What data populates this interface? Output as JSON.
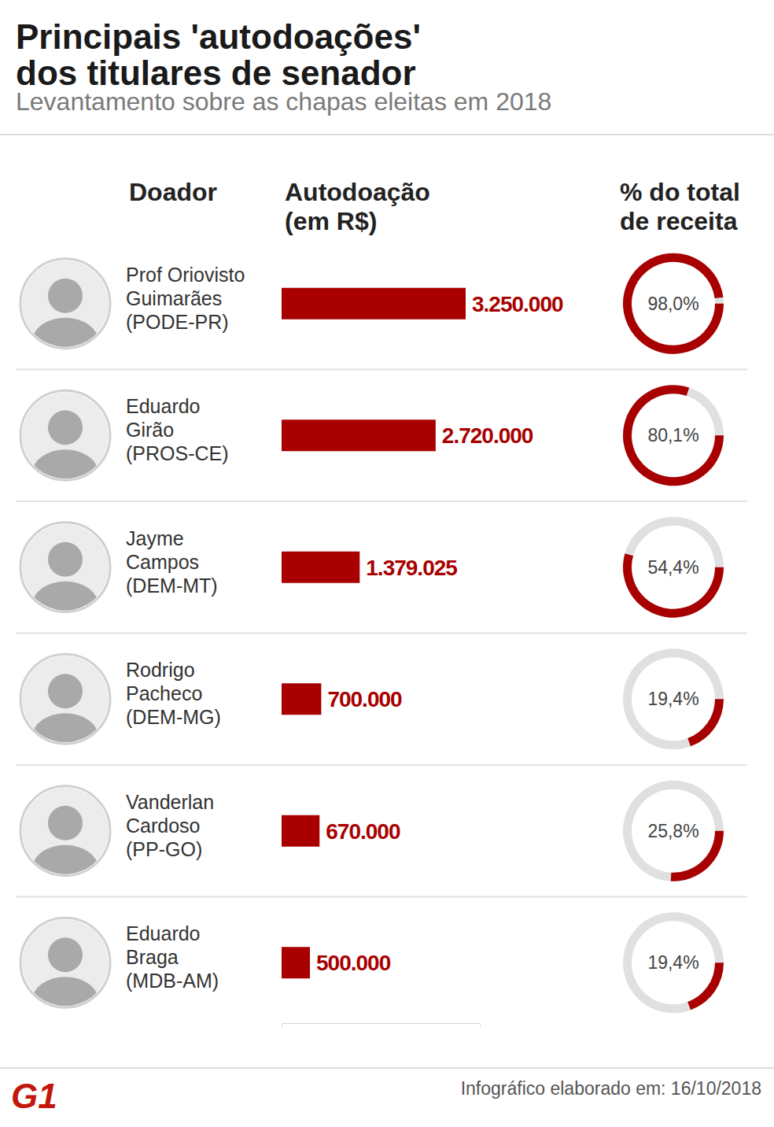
{
  "chart_data": {
    "type": "bar",
    "orientation": "horizontal",
    "title": "Principais 'autodoações'\ndos titulares de senador",
    "subtitle": "Levantamento sobre as chapas eleitas em 2018",
    "categories_title": "Doador",
    "categories": [
      "Prof Oriovisto\nGuimarães\n(PODE-PR)",
      "Eduardo\nGirão\n(PROS-CE)",
      "Jayme\nCampos\n(DEM-MT)",
      "Rodrigo\nPacheco\n(DEM-MG)",
      "Vanderlan\nCardoso\n(PP-GO)",
      "Eduardo\nBraga\n(MDB-AM)"
    ],
    "series": [
      {
        "name": "Autodoação\n(em R$)",
        "type": "bar",
        "color": "#a80000",
        "values": [
          3250000,
          2720000,
          1379025,
          700000,
          670000,
          500000
        ],
        "value_labels": [
          "3.250.000",
          "2.720.000",
          "1.379.025",
          "700.000",
          "670.000",
          "500.000"
        ]
      },
      {
        "name": "% do total\nde receita",
        "type": "donut",
        "color": "#a80000",
        "axis": "y2",
        "values": [
          98.0,
          80.1,
          54.4,
          19.4,
          25.8,
          19.4
        ],
        "value_labels": [
          "98,0%",
          "80,1%",
          "54,4%",
          "19,4%",
          "25,8%",
          "19,4%"
        ]
      }
    ],
    "xlim": [
      0,
      3500000
    ],
    "xticks": [
      0,
      3500000
    ],
    "y2lim": [
      0,
      100
    ],
    "data_labels": true,
    "tick_labels": false,
    "grid": false,
    "footer": "Infográfico elaborado em: 16/10/2018",
    "source": "G1"
  }
}
